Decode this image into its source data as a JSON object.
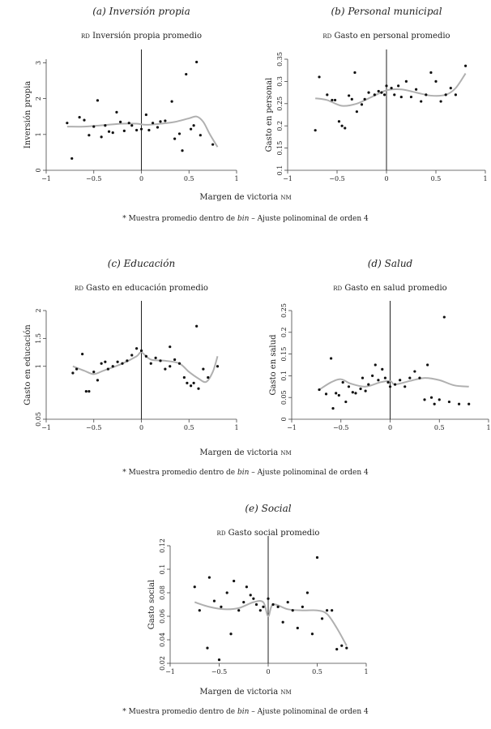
{
  "chart_data": [
    {
      "type": "scatter",
      "title": "(a) Inversión propia",
      "subtitle": {
        "prefix": "rd",
        "text": " Inversión propia promedio"
      },
      "ylabel": "Inversión propia",
      "xlabel": {
        "text": "Margen de victoria ",
        "sc": "nm"
      },
      "note": {
        "pre": "* Muestra promedio dentro de ",
        "italic": "bin",
        "post": " – Ajuste polinominal de orden 4"
      },
      "xlim": [
        -1,
        1
      ],
      "ylim": [
        0,
        3.1
      ],
      "xticks": [
        -1,
        -0.5,
        0,
        0.5,
        1
      ],
      "xtick_labels": [
        "−1",
        "−0.5",
        "0",
        "0.5",
        "1"
      ],
      "yticks": [
        0,
        1,
        2,
        3
      ],
      "ytick_labels": [
        "0",
        "1",
        "2",
        "3"
      ],
      "points": [
        [
          -0.78,
          1.32
        ],
        [
          -0.73,
          0.33
        ],
        [
          -0.65,
          1.48
        ],
        [
          -0.6,
          1.4
        ],
        [
          -0.55,
          0.98
        ],
        [
          -0.5,
          1.22
        ],
        [
          -0.46,
          1.95
        ],
        [
          -0.42,
          0.93
        ],
        [
          -0.38,
          1.25
        ],
        [
          -0.34,
          1.08
        ],
        [
          -0.3,
          1.05
        ],
        [
          -0.26,
          1.62
        ],
        [
          -0.22,
          1.35
        ],
        [
          -0.18,
          1.1
        ],
        [
          -0.13,
          1.32
        ],
        [
          -0.1,
          1.25
        ],
        [
          -0.05,
          1.12
        ],
        [
          0,
          1.15
        ],
        [
          0.05,
          1.55
        ],
        [
          0.08,
          1.12
        ],
        [
          0.12,
          1.32
        ],
        [
          0.17,
          1.2
        ],
        [
          0.2,
          1.36
        ],
        [
          0.25,
          1.38
        ],
        [
          0.32,
          1.92
        ],
        [
          0.35,
          0.88
        ],
        [
          0.4,
          1.02
        ],
        [
          0.43,
          0.55
        ],
        [
          0.47,
          2.68
        ],
        [
          0.52,
          1.15
        ],
        [
          0.55,
          1.25
        ],
        [
          0.58,
          3.02
        ],
        [
          0.62,
          0.98
        ],
        [
          0.75,
          0.72
        ]
      ],
      "fit": [
        [
          -0.78,
          1.22
        ],
        [
          -0.6,
          1.22
        ],
        [
          -0.4,
          1.26
        ],
        [
          -0.2,
          1.3
        ],
        [
          -0.05,
          1.3
        ],
        [
          0.05,
          1.27
        ],
        [
          0.2,
          1.3
        ],
        [
          0.35,
          1.35
        ],
        [
          0.5,
          1.45
        ],
        [
          0.58,
          1.5
        ],
        [
          0.65,
          1.35
        ],
        [
          0.72,
          1.0
        ],
        [
          0.8,
          0.65
        ]
      ]
    },
    {
      "type": "scatter",
      "title": "(b) Personal municipal",
      "subtitle": {
        "prefix": "rd",
        "text": " Gasto en personal promedio"
      },
      "ylabel": "Gasto en personal",
      "xlabel": {
        "text": "",
        "sc": ""
      },
      "note": {
        "pre": "",
        "italic": "",
        "post": ""
      },
      "xlim": [
        -1,
        1
      ],
      "ylim": [
        0.1,
        0.35
      ],
      "xticks": [
        -1,
        -0.5,
        0,
        0.5,
        1
      ],
      "xtick_labels": [
        "−1",
        "−0.5",
        "0",
        "0.5",
        "1"
      ],
      "yticks": [
        0.1,
        0.15,
        0.2,
        0.25,
        0.3,
        0.35
      ],
      "ytick_labels": [
        "0.1",
        "0.15",
        "0.2",
        "0.25",
        "0.3",
        "0.35"
      ],
      "points": [
        [
          -0.72,
          0.19
        ],
        [
          -0.68,
          0.31
        ],
        [
          -0.6,
          0.27
        ],
        [
          -0.55,
          0.258
        ],
        [
          -0.52,
          0.258
        ],
        [
          -0.48,
          0.21
        ],
        [
          -0.45,
          0.2
        ],
        [
          -0.42,
          0.195
        ],
        [
          -0.38,
          0.268
        ],
        [
          -0.35,
          0.26
        ],
        [
          -0.32,
          0.32
        ],
        [
          -0.3,
          0.232
        ],
        [
          -0.25,
          0.248
        ],
        [
          -0.22,
          0.26
        ],
        [
          -0.18,
          0.275
        ],
        [
          -0.12,
          0.27
        ],
        [
          -0.08,
          0.278
        ],
        [
          -0.05,
          0.275
        ],
        [
          -0.02,
          0.27
        ],
        [
          0,
          0.29
        ],
        [
          0.05,
          0.285
        ],
        [
          0.08,
          0.27
        ],
        [
          0.12,
          0.29
        ],
        [
          0.15,
          0.265
        ],
        [
          0.2,
          0.3
        ],
        [
          0.25,
          0.265
        ],
        [
          0.3,
          0.282
        ],
        [
          0.35,
          0.255
        ],
        [
          0.4,
          0.27
        ],
        [
          0.45,
          0.32
        ],
        [
          0.5,
          0.3
        ],
        [
          0.55,
          0.255
        ],
        [
          0.6,
          0.27
        ],
        [
          0.65,
          0.285
        ],
        [
          0.7,
          0.27
        ],
        [
          0.8,
          0.335
        ]
      ],
      "fit": [
        [
          -0.72,
          0.262
        ],
        [
          -0.6,
          0.258
        ],
        [
          -0.45,
          0.245
        ],
        [
          -0.3,
          0.25
        ],
        [
          -0.15,
          0.265
        ],
        [
          0,
          0.28
        ],
        [
          0.15,
          0.282
        ],
        [
          0.3,
          0.275
        ],
        [
          0.45,
          0.268
        ],
        [
          0.6,
          0.27
        ],
        [
          0.7,
          0.285
        ],
        [
          0.8,
          0.318
        ]
      ]
    },
    {
      "type": "scatter",
      "title": "(c) Educación",
      "subtitle": {
        "prefix": "rd",
        "text": " Gasto en educación promedio"
      },
      "ylabel": "Gasto en educación",
      "xlabel": {
        "text": "Margen de victoria ",
        "sc": "nm"
      },
      "note": {
        "pre": "* Muestra promedio dentro de ",
        "italic": "bin",
        "post": " – Ajuste polinominal de orden 4"
      },
      "xlim": [
        -1,
        1
      ],
      "ylim": [
        0.05,
        2
      ],
      "xticks": [
        -1,
        -0.5,
        0,
        0.5,
        1
      ],
      "xtick_labels": [
        "−1",
        "−0.5",
        "0",
        "0.5",
        "1"
      ],
      "yticks": [
        0.05,
        1,
        1.5,
        2
      ],
      "ytick_labels": [
        "0.05",
        "1",
        "1.5",
        "2"
      ],
      "points": [
        [
          -0.72,
          0.88
        ],
        [
          -0.68,
          0.95
        ],
        [
          -0.62,
          1.22
        ],
        [
          -0.58,
          0.55
        ],
        [
          -0.55,
          0.55
        ],
        [
          -0.5,
          0.9
        ],
        [
          -0.46,
          0.75
        ],
        [
          -0.42,
          1.05
        ],
        [
          -0.38,
          1.08
        ],
        [
          -0.35,
          0.95
        ],
        [
          -0.3,
          1.0
        ],
        [
          -0.25,
          1.08
        ],
        [
          -0.2,
          1.05
        ],
        [
          -0.15,
          1.1
        ],
        [
          -0.1,
          1.2
        ],
        [
          -0.05,
          1.32
        ],
        [
          0,
          1.28
        ],
        [
          0.05,
          1.18
        ],
        [
          0.1,
          1.05
        ],
        [
          0.15,
          1.15
        ],
        [
          0.2,
          1.1
        ],
        [
          0.25,
          0.95
        ],
        [
          0.3,
          1.0
        ],
        [
          0.3,
          1.35
        ],
        [
          0.35,
          1.12
        ],
        [
          0.4,
          1.05
        ],
        [
          0.45,
          0.8
        ],
        [
          0.48,
          0.7
        ],
        [
          0.52,
          0.65
        ],
        [
          0.55,
          0.7
        ],
        [
          0.58,
          1.72
        ],
        [
          0.6,
          0.6
        ],
        [
          0.65,
          0.95
        ],
        [
          0.7,
          0.8
        ],
        [
          0.8,
          1.0
        ]
      ],
      "fit": [
        [
          -0.72,
          1.0
        ],
        [
          -0.6,
          0.92
        ],
        [
          -0.5,
          0.86
        ],
        [
          -0.4,
          0.92
        ],
        [
          -0.2,
          1.05
        ],
        [
          -0.05,
          1.18
        ],
        [
          0,
          1.25
        ],
        [
          0.1,
          1.12
        ],
        [
          0.25,
          1.1
        ],
        [
          0.4,
          1.05
        ],
        [
          0.5,
          0.9
        ],
        [
          0.6,
          0.78
        ],
        [
          0.68,
          0.72
        ],
        [
          0.75,
          0.9
        ],
        [
          0.8,
          1.18
        ]
      ]
    },
    {
      "type": "scatter",
      "title": "(d) Salud",
      "subtitle": {
        "prefix": "rd",
        "text": " Gasto en salud promedio"
      },
      "ylabel": "Gasto en salud",
      "xlabel": {
        "text": "",
        "sc": ""
      },
      "note": {
        "pre": "",
        "italic": "",
        "post": ""
      },
      "xlim": [
        -1,
        1
      ],
      "ylim": [
        0,
        0.25
      ],
      "xticks": [
        -1,
        -0.5,
        0,
        0.5,
        1
      ],
      "xtick_labels": [
        "−1",
        "−0.5",
        "0",
        "0.5",
        "1"
      ],
      "yticks": [
        0,
        0.05,
        0.1,
        0.15,
        0.2,
        0.25
      ],
      "ytick_labels": [
        "0",
        "0.05",
        "0.1",
        "0.15",
        "0.2",
        "0.25"
      ],
      "points": [
        [
          -0.72,
          0.068
        ],
        [
          -0.65,
          0.058
        ],
        [
          -0.6,
          0.14
        ],
        [
          -0.58,
          0.025
        ],
        [
          -0.55,
          0.06
        ],
        [
          -0.52,
          0.055
        ],
        [
          -0.48,
          0.085
        ],
        [
          -0.45,
          0.04
        ],
        [
          -0.42,
          0.075
        ],
        [
          -0.38,
          0.062
        ],
        [
          -0.35,
          0.06
        ],
        [
          -0.3,
          0.07
        ],
        [
          -0.28,
          0.095
        ],
        [
          -0.25,
          0.065
        ],
        [
          -0.22,
          0.08
        ],
        [
          -0.18,
          0.1
        ],
        [
          -0.15,
          0.125
        ],
        [
          -0.12,
          0.09
        ],
        [
          -0.08,
          0.115
        ],
        [
          -0.05,
          0.095
        ],
        [
          -0.02,
          0.085
        ],
        [
          0,
          0.075
        ],
        [
          0.05,
          0.08
        ],
        [
          0.1,
          0.09
        ],
        [
          0.15,
          0.075
        ],
        [
          0.2,
          0.095
        ],
        [
          0.25,
          0.11
        ],
        [
          0.3,
          0.095
        ],
        [
          0.35,
          0.045
        ],
        [
          0.38,
          0.125
        ],
        [
          0.42,
          0.05
        ],
        [
          0.45,
          0.035
        ],
        [
          0.5,
          0.045
        ],
        [
          0.55,
          0.235
        ],
        [
          0.6,
          0.04
        ],
        [
          0.7,
          0.035
        ],
        [
          0.8,
          0.035
        ]
      ],
      "fit": [
        [
          -0.72,
          0.068
        ],
        [
          -0.6,
          0.085
        ],
        [
          -0.5,
          0.092
        ],
        [
          -0.4,
          0.082
        ],
        [
          -0.25,
          0.075
        ],
        [
          -0.1,
          0.085
        ],
        [
          0,
          0.088
        ],
        [
          0.05,
          0.08
        ],
        [
          0.2,
          0.088
        ],
        [
          0.35,
          0.095
        ],
        [
          0.5,
          0.09
        ],
        [
          0.65,
          0.078
        ],
        [
          0.8,
          0.075
        ]
      ]
    },
    {
      "type": "scatter",
      "title": "(e) Social",
      "subtitle": {
        "prefix": "rd",
        "text": " Gasto social promedio"
      },
      "ylabel": "Gasto social",
      "xlabel": {
        "text": "Margen de victoria ",
        "sc": "nm"
      },
      "note": {
        "pre": "* Muestra promedio dentro de ",
        "italic": "bin",
        "post": " – Ajuste polinominal de orden 4"
      },
      "xlim": [
        -1,
        1
      ],
      "ylim": [
        0.02,
        0.12
      ],
      "xticks": [
        -1,
        -0.5,
        0,
        0.5,
        1
      ],
      "xtick_labels": [
        "−1",
        "−0.5",
        "0",
        "0.5",
        "1"
      ],
      "yticks": [
        0.02,
        0.04,
        0.06,
        0.08,
        0.1,
        0.12
      ],
      "ytick_labels": [
        "0.02",
        "0.04",
        "0.06",
        "0.08",
        "0.1",
        "0.12"
      ],
      "points": [
        [
          -0.75,
          0.085
        ],
        [
          -0.7,
          0.065
        ],
        [
          -0.62,
          0.033
        ],
        [
          -0.6,
          0.093
        ],
        [
          -0.55,
          0.073
        ],
        [
          -0.5,
          0.023
        ],
        [
          -0.48,
          0.068
        ],
        [
          -0.42,
          0.08
        ],
        [
          -0.38,
          0.045
        ],
        [
          -0.35,
          0.09
        ],
        [
          -0.3,
          0.065
        ],
        [
          -0.25,
          0.072
        ],
        [
          -0.22,
          0.085
        ],
        [
          -0.18,
          0.078
        ],
        [
          -0.15,
          0.075
        ],
        [
          -0.12,
          0.07
        ],
        [
          -0.08,
          0.065
        ],
        [
          -0.05,
          0.068
        ],
        [
          0,
          0.075
        ],
        [
          0.05,
          0.07
        ],
        [
          0.1,
          0.068
        ],
        [
          0.15,
          0.055
        ],
        [
          0.2,
          0.072
        ],
        [
          0.25,
          0.065
        ],
        [
          0.3,
          0.05
        ],
        [
          0.35,
          0.068
        ],
        [
          0.4,
          0.08
        ],
        [
          0.45,
          0.045
        ],
        [
          0.5,
          0.11
        ],
        [
          0.55,
          0.058
        ],
        [
          0.6,
          0.065
        ],
        [
          0.65,
          0.065
        ],
        [
          0.7,
          0.032
        ],
        [
          0.75,
          0.035
        ],
        [
          0.8,
          0.033
        ]
      ],
      "fit": [
        [
          -0.75,
          0.072
        ],
        [
          -0.6,
          0.068
        ],
        [
          -0.45,
          0.066
        ],
        [
          -0.3,
          0.067
        ],
        [
          -0.15,
          0.072
        ],
        [
          -0.05,
          0.072
        ],
        [
          0,
          0.06
        ],
        [
          0.05,
          0.07
        ],
        [
          0.2,
          0.066
        ],
        [
          0.35,
          0.065
        ],
        [
          0.5,
          0.065
        ],
        [
          0.6,
          0.062
        ],
        [
          0.7,
          0.05
        ],
        [
          0.8,
          0.035
        ]
      ]
    }
  ]
}
